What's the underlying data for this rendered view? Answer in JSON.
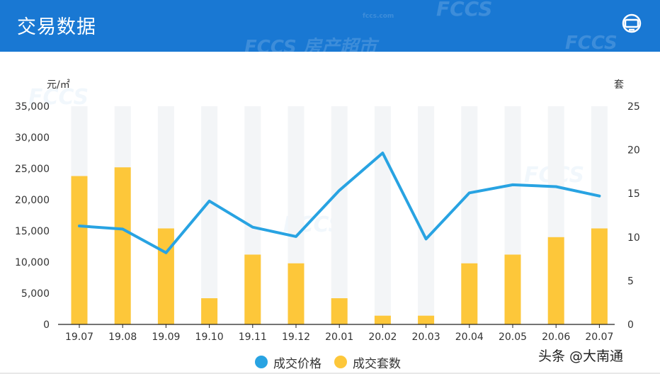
{
  "header": {
    "title": "交易数据",
    "menu_icon": "tv-icon",
    "watermark_top": "FCCS",
    "watermark_bottom": "FCCS 房产超市",
    "watermark_small": "fccs.com"
  },
  "chart_data": {
    "type": "bar",
    "categories": [
      "19.07",
      "19.08",
      "19.09",
      "19.10",
      "19.11",
      "19.12",
      "20.01",
      "20.02",
      "20.03",
      "20.04",
      "20.05",
      "20.06",
      "20.07"
    ],
    "ylabel_left": "元/㎡",
    "ylabel_right": "套",
    "yticks_left": [
      "35,000",
      "30,000",
      "25,000",
      "20,000",
      "15,000",
      "10,000",
      "5,000",
      "0"
    ],
    "yticks_right": [
      "25",
      "20",
      "15",
      "10",
      "5",
      "0"
    ],
    "ylim_left": [
      0,
      35000
    ],
    "ylim_right": [
      0,
      25
    ],
    "series": [
      {
        "name": "成交价格",
        "type": "line",
        "axis": "left",
        "color": "#28a3e2",
        "values": [
          15800,
          15300,
          11500,
          19800,
          15600,
          14100,
          21500,
          27500,
          13700,
          21100,
          22400,
          22100,
          20600
        ]
      },
      {
        "name": "成交套数",
        "type": "bar",
        "axis": "right",
        "color": "#fdc73a",
        "values": [
          17,
          18,
          11,
          3,
          8,
          7,
          3,
          1,
          1,
          7,
          8,
          10,
          11
        ]
      }
    ],
    "bar_background_color": "#f3f5f7",
    "grid": false,
    "legend_position": "bottom-center"
  },
  "legend": {
    "price_label": "成交价格",
    "count_label": "成交套数"
  },
  "credit": "头条 @大南通"
}
